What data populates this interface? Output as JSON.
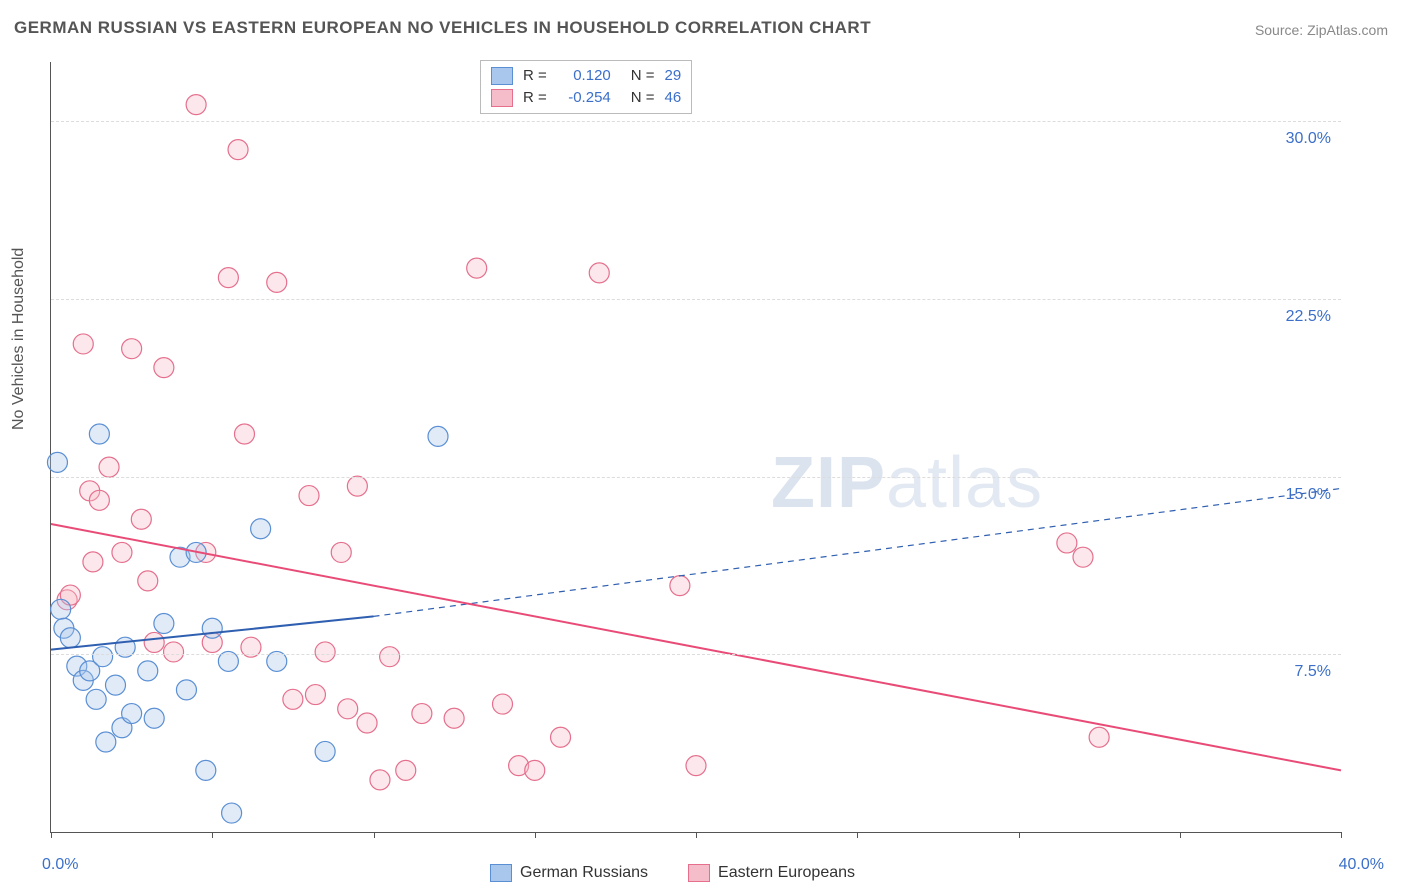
{
  "title": "GERMAN RUSSIAN VS EASTERN EUROPEAN NO VEHICLES IN HOUSEHOLD CORRELATION CHART",
  "source": "Source: ZipAtlas.com",
  "ylabel": "No Vehicles in Household",
  "watermark_bold": "ZIP",
  "watermark_thin": "atlas",
  "chart": {
    "type": "scatter",
    "background_color": "#ffffff",
    "grid_color": "#dcdcdc",
    "axis_color": "#555555",
    "tick_label_color": "#3b6fc9",
    "xlim": [
      0,
      40
    ],
    "ylim": [
      0,
      32.5
    ],
    "x_ticks": [
      0,
      5,
      10,
      15,
      20,
      25,
      30,
      35,
      40
    ],
    "y_gridlines": [
      7.5,
      15.0,
      22.5,
      30.0
    ],
    "y_tick_labels": [
      "7.5%",
      "15.0%",
      "22.5%",
      "30.0%"
    ],
    "x_min_label": "0.0%",
    "x_max_label": "40.0%",
    "marker_radius": 10,
    "marker_fill_opacity": 0.35,
    "marker_stroke_width": 1.2,
    "line_width": 2,
    "series": [
      {
        "name": "German Russians",
        "legend_label": "German Russians",
        "color_fill": "#a9c7ec",
        "color_stroke": "#5a8fd4",
        "line_color": "#2f5fb0",
        "R_label": "R =",
        "R_value": "0.120",
        "N_label": "N =",
        "N_value": "29",
        "trend_solid": {
          "x1": 0,
          "y1": 7.7,
          "x2": 10,
          "y2": 9.1
        },
        "trend_dashed": {
          "x1": 10,
          "y1": 9.1,
          "x2": 40,
          "y2": 14.5
        },
        "points": [
          [
            0.2,
            15.6
          ],
          [
            0.3,
            9.4
          ],
          [
            0.4,
            8.6
          ],
          [
            0.6,
            8.2
          ],
          [
            0.8,
            7.0
          ],
          [
            1.0,
            6.4
          ],
          [
            1.2,
            6.8
          ],
          [
            1.4,
            5.6
          ],
          [
            1.5,
            16.8
          ],
          [
            1.6,
            7.4
          ],
          [
            1.7,
            3.8
          ],
          [
            2.0,
            6.2
          ],
          [
            2.2,
            4.4
          ],
          [
            2.3,
            7.8
          ],
          [
            2.5,
            5.0
          ],
          [
            3.0,
            6.8
          ],
          [
            3.2,
            4.8
          ],
          [
            3.5,
            8.8
          ],
          [
            4.0,
            11.6
          ],
          [
            4.2,
            6.0
          ],
          [
            4.5,
            11.8
          ],
          [
            4.8,
            2.6
          ],
          [
            5.0,
            8.6
          ],
          [
            5.5,
            7.2
          ],
          [
            5.6,
            0.8
          ],
          [
            6.5,
            12.8
          ],
          [
            7.0,
            7.2
          ],
          [
            8.5,
            3.4
          ],
          [
            12.0,
            16.7
          ]
        ]
      },
      {
        "name": "Eastern Europeans",
        "legend_label": "Eastern Europeans",
        "color_fill": "#f5bcc9",
        "color_stroke": "#e56f8d",
        "line_color": "#e94b77",
        "R_label": "R =",
        "R_value": "-0.254",
        "N_label": "N =",
        "N_value": "46",
        "trend_solid": {
          "x1": 0,
          "y1": 13.0,
          "x2": 40,
          "y2": 2.6
        },
        "trend_dashed": null,
        "points": [
          [
            0.5,
            9.8
          ],
          [
            0.6,
            10.0
          ],
          [
            1.0,
            20.6
          ],
          [
            1.2,
            14.4
          ],
          [
            1.3,
            11.4
          ],
          [
            1.5,
            14.0
          ],
          [
            1.8,
            15.4
          ],
          [
            2.2,
            11.8
          ],
          [
            2.5,
            20.4
          ],
          [
            2.8,
            13.2
          ],
          [
            3.0,
            10.6
          ],
          [
            3.2,
            8.0
          ],
          [
            3.5,
            19.6
          ],
          [
            3.8,
            7.6
          ],
          [
            4.5,
            30.7
          ],
          [
            4.8,
            11.8
          ],
          [
            5.0,
            8.0
          ],
          [
            5.5,
            23.4
          ],
          [
            5.8,
            28.8
          ],
          [
            6.0,
            16.8
          ],
          [
            6.2,
            7.8
          ],
          [
            7.0,
            23.2
          ],
          [
            7.5,
            5.6
          ],
          [
            8.0,
            14.2
          ],
          [
            8.2,
            5.8
          ],
          [
            8.5,
            7.6
          ],
          [
            9.0,
            11.8
          ],
          [
            9.2,
            5.2
          ],
          [
            9.5,
            14.6
          ],
          [
            9.8,
            4.6
          ],
          [
            10.2,
            2.2
          ],
          [
            10.5,
            7.4
          ],
          [
            11.0,
            2.6
          ],
          [
            11.5,
            5.0
          ],
          [
            12.5,
            4.8
          ],
          [
            13.2,
            23.8
          ],
          [
            14.0,
            5.4
          ],
          [
            14.5,
            2.8
          ],
          [
            15.0,
            2.6
          ],
          [
            15.8,
            4.0
          ],
          [
            17.0,
            23.6
          ],
          [
            19.5,
            10.4
          ],
          [
            20.0,
            2.8
          ],
          [
            31.5,
            12.2
          ],
          [
            32.0,
            11.6
          ],
          [
            32.5,
            4.0
          ]
        ]
      }
    ]
  },
  "legend_bottom": [
    {
      "label": "German Russians",
      "fill": "#a9c7ec",
      "stroke": "#5a8fd4"
    },
    {
      "label": "Eastern Europeans",
      "fill": "#f5bcc9",
      "stroke": "#e56f8d"
    }
  ]
}
